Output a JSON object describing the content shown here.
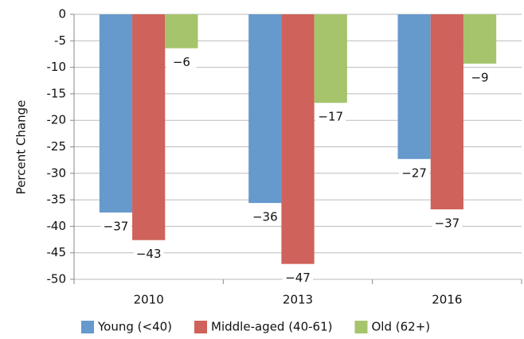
{
  "chart_data": {
    "type": "bar",
    "y_label": "Percent Change",
    "categories": [
      "2010",
      "2013",
      "2016"
    ],
    "series": [
      {
        "name": "Young (<40)",
        "color": "#6699cc",
        "values": [
          -37.4,
          -35.6,
          -27.3
        ],
        "value_labels": [
          "−37",
          "−36",
          "−27"
        ]
      },
      {
        "name": "Middle-aged (40-61)",
        "color": "#cf625a",
        "values": [
          -42.6,
          -47.1,
          -36.8
        ],
        "value_labels": [
          "−43",
          "−47",
          "−37"
        ]
      },
      {
        "name": "Old (62+)",
        "color": "#a5c46b",
        "values": [
          -6.4,
          -16.7,
          -9.3
        ],
        "value_labels": [
          "−6",
          "−17",
          "−9"
        ]
      }
    ],
    "ylim": [
      -50,
      0
    ],
    "yticks": [
      0,
      -5,
      -10,
      -15,
      -20,
      -25,
      -30,
      -35,
      -40,
      -45,
      -50
    ],
    "grid": true,
    "legend": "bottom"
  }
}
